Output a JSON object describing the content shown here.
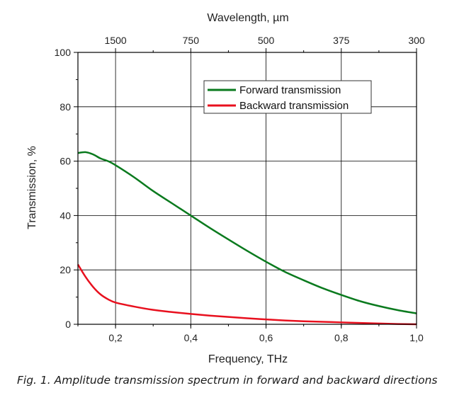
{
  "chart_data": {
    "type": "line",
    "xlabel": "Frequency, THz",
    "x2label": "Wavelength, µm",
    "ylabel": "Transmission, %",
    "xlim": [
      0.1,
      1.0
    ],
    "ylim": [
      0,
      100
    ],
    "x_ticks": [
      0.2,
      0.4,
      0.6,
      0.8,
      1.0
    ],
    "x_tick_labels": [
      "0,2",
      "0,4",
      "0,6",
      "0,8",
      "1,0"
    ],
    "y_ticks": [
      0,
      20,
      40,
      60,
      80,
      100
    ],
    "y_tick_labels": [
      "0",
      "20",
      "40",
      "60",
      "80",
      "100"
    ],
    "x2_ticks": [
      1500,
      750,
      500,
      375,
      300
    ],
    "x2_tick_labels": [
      "1500",
      "750",
      "500",
      "375",
      "300"
    ],
    "grid": true,
    "legend_position": "top-right",
    "series": [
      {
        "name": "Forward transmission",
        "color": "#0a7a1e",
        "x": [
          0.1,
          0.12,
          0.14,
          0.16,
          0.18,
          0.2,
          0.25,
          0.3,
          0.35,
          0.4,
          0.45,
          0.5,
          0.55,
          0.6,
          0.65,
          0.7,
          0.75,
          0.8,
          0.85,
          0.9,
          0.95,
          1.0
        ],
        "y": [
          63,
          63.3,
          62.5,
          61,
          60,
          58.5,
          54,
          49,
          44.5,
          40,
          35.5,
          31.2,
          27,
          23,
          19.3,
          16.2,
          13.3,
          10.8,
          8.5,
          6.7,
          5.2,
          4.0
        ]
      },
      {
        "name": "Backward transmission",
        "color": "#e8101e",
        "x": [
          0.1,
          0.12,
          0.14,
          0.16,
          0.18,
          0.2,
          0.25,
          0.3,
          0.35,
          0.4,
          0.45,
          0.5,
          0.55,
          0.6,
          0.65,
          0.7,
          0.75,
          0.8,
          0.85,
          0.9,
          0.95,
          1.0
        ],
        "y": [
          22,
          17.5,
          13.8,
          11,
          9.2,
          8,
          6.5,
          5.3,
          4.5,
          3.8,
          3.2,
          2.7,
          2.2,
          1.8,
          1.4,
          1.1,
          0.9,
          0.7,
          0.5,
          0.3,
          0.1,
          0.0
        ]
      }
    ]
  },
  "caption": "Fig. 1. Amplitude transmission spectrum in forward and backward directions"
}
